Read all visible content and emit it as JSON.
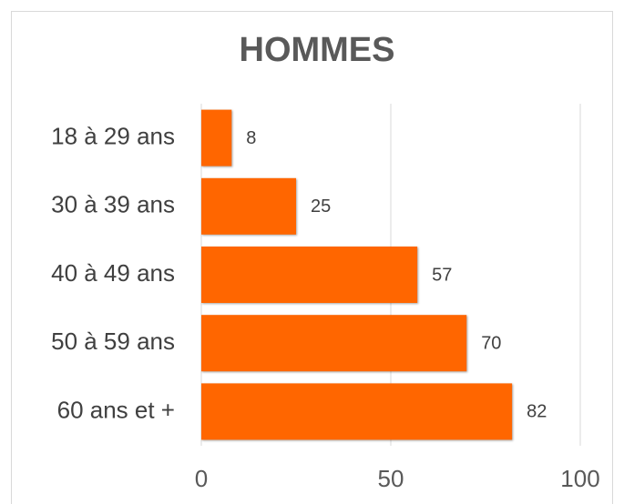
{
  "chart_data": {
    "type": "bar",
    "orientation": "horizontal",
    "title": "HOMMES",
    "categories": [
      "18 à 29 ans",
      "30 à 39 ans",
      "40 à 49 ans",
      "50 à 59 ans",
      "60 ans et +"
    ],
    "values": [
      8,
      25,
      57,
      70,
      82
    ],
    "color": "#ff6600",
    "xlim": [
      0,
      100
    ],
    "xticks": [
      0,
      50,
      100
    ],
    "grid": true
  }
}
